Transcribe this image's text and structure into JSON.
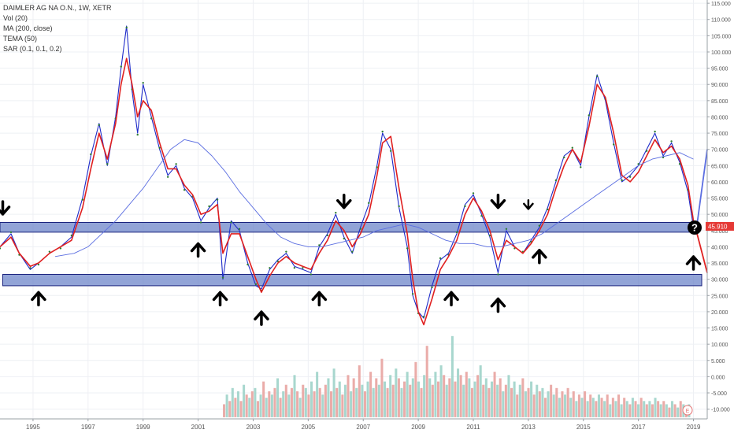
{
  "chart_data": {
    "type": "line",
    "title": "DAIMLER AG NA O.N., 1W, XETR",
    "indicators": [
      "Vol (20)",
      "MA (200, close)",
      "TEMA (50)",
      "SAR (0.1, 0.1, 0.2)"
    ],
    "price_label": "45.910",
    "question_mark": "?",
    "ylim": [
      -13,
      116
    ],
    "y_ticks": [
      -10,
      -5,
      0,
      5,
      10,
      15,
      20,
      25,
      30,
      35,
      40,
      45,
      50,
      55,
      60,
      65,
      70,
      75,
      80,
      85,
      90,
      95,
      100,
      105,
      110,
      115
    ],
    "y_tick_labels": [
      "-10.000",
      "-5.000",
      "0.000",
      "5.000",
      "10.000",
      "15.000",
      "20.000",
      "25.000",
      "30.000",
      "35.000",
      "40.000",
      "45.000",
      "50.000",
      "55.000",
      "60.000",
      "65.000",
      "70.000",
      "75.000",
      "80.000",
      "85.000",
      "90.000",
      "95.000",
      "100.000",
      "105.000",
      "110.000",
      "115.000"
    ],
    "xlim": [
      1993.8,
      2019.5
    ],
    "x_ticks": [
      1995,
      1997,
      1999,
      2001,
      2003,
      2005,
      2007,
      2009,
      2011,
      2013,
      2015,
      2017,
      2019
    ],
    "x_tick_labels": [
      "1995",
      "1997",
      "1999",
      "2001",
      "2003",
      "2005",
      "2007",
      "2009",
      "2011",
      "2013",
      "2015",
      "2017",
      "2019"
    ],
    "grid": true,
    "series": [
      {
        "type": "price",
        "color": "#1e2bc9",
        "x": [
          1993.8,
          1994.2,
          1994.5,
          1994.9,
          1995.2,
          1995.6,
          1996.0,
          1996.4,
          1996.8,
          1997.1,
          1997.4,
          1997.7,
          1998.0,
          1998.2,
          1998.4,
          1998.6,
          1998.8,
          1999.0,
          1999.3,
          1999.6,
          1999.9,
          2000.2,
          2000.5,
          2000.8,
          2001.1,
          2001.4,
          2001.7,
          2001.9,
          2002.2,
          2002.5,
          2002.8,
          2003.1,
          2003.3,
          2003.6,
          2003.9,
          2004.2,
          2004.5,
          2004.8,
          2005.1,
          2005.4,
          2005.7,
          2006.0,
          2006.3,
          2006.6,
          2006.9,
          2007.2,
          2007.5,
          2007.7,
          2008.0,
          2008.3,
          2008.6,
          2008.8,
          2009.0,
          2009.2,
          2009.5,
          2009.8,
          2010.1,
          2010.4,
          2010.7,
          2011.0,
          2011.3,
          2011.6,
          2011.9,
          2012.2,
          2012.5,
          2012.8,
          2013.1,
          2013.4,
          2013.7,
          2014.0,
          2014.3,
          2014.6,
          2014.9,
          2015.2,
          2015.5,
          2015.8,
          2016.1,
          2016.4,
          2016.7,
          2017.0,
          2017.3,
          2017.6,
          2017.9,
          2018.2,
          2018.5,
          2018.8,
          2019.0
        ],
        "y": [
          40,
          44,
          38,
          33,
          35,
          38,
          40,
          43,
          55,
          68,
          78,
          65,
          80,
          95,
          108,
          88,
          75,
          90,
          80,
          70,
          62,
          65,
          58,
          55,
          48,
          52,
          55,
          30,
          48,
          45,
          35,
          28,
          27,
          33,
          36,
          38,
          34,
          33,
          32,
          40,
          44,
          50,
          43,
          38,
          46,
          53,
          65,
          75,
          70,
          52,
          40,
          25,
          20,
          18,
          28,
          36,
          38,
          44,
          53,
          56,
          50,
          43,
          32,
          45,
          40,
          38,
          42,
          46,
          52,
          60,
          68,
          70,
          65,
          80,
          93,
          85,
          72,
          60,
          62,
          65,
          70,
          75,
          68,
          72,
          66,
          57,
          46
        ]
      },
      {
        "type": "TEMA",
        "color": "#e02020",
        "x": [
          1993.8,
          1994.2,
          1994.5,
          1994.9,
          1995.2,
          1995.6,
          1996.0,
          1996.4,
          1996.8,
          1997.1,
          1997.4,
          1997.7,
          1998.0,
          1998.2,
          1998.4,
          1998.6,
          1998.8,
          1999.0,
          1999.3,
          1999.6,
          1999.9,
          2000.2,
          2000.5,
          2000.8,
          2001.1,
          2001.4,
          2001.7,
          2001.9,
          2002.2,
          2002.5,
          2002.8,
          2003.1,
          2003.3,
          2003.6,
          2003.9,
          2004.2,
          2004.5,
          2004.8,
          2005.1,
          2005.4,
          2005.7,
          2006.0,
          2006.3,
          2006.6,
          2006.9,
          2007.2,
          2007.5,
          2007.7,
          2008.0,
          2008.3,
          2008.6,
          2008.8,
          2009.0,
          2009.2,
          2009.5,
          2009.8,
          2010.1,
          2010.4,
          2010.7,
          2011.0,
          2011.3,
          2011.6,
          2011.9,
          2012.2,
          2012.5,
          2012.8,
          2013.1,
          2013.4,
          2013.7,
          2014.0,
          2014.3,
          2014.6,
          2014.9,
          2015.2,
          2015.5,
          2015.8,
          2016.1,
          2016.4,
          2016.7,
          2017.0,
          2017.3,
          2017.6,
          2017.9,
          2018.2,
          2018.5,
          2018.8,
          2019.0
        ],
        "y": [
          40,
          43,
          38,
          34,
          35,
          38,
          40,
          42,
          52,
          64,
          75,
          67,
          78,
          90,
          98,
          90,
          80,
          85,
          82,
          72,
          64,
          64,
          59,
          56,
          50,
          51,
          53,
          38,
          44,
          44,
          37,
          30,
          26,
          31,
          35,
          37,
          35,
          34,
          33,
          38,
          42,
          48,
          45,
          40,
          44,
          50,
          62,
          72,
          74,
          58,
          44,
          30,
          20,
          16,
          24,
          33,
          37,
          42,
          50,
          55,
          51,
          45,
          36,
          42,
          40,
          38,
          41,
          45,
          50,
          58,
          65,
          70,
          66,
          77,
          90,
          86,
          75,
          62,
          60,
          63,
          68,
          73,
          69,
          71,
          67,
          59,
          48
        ]
      },
      {
        "type": "MA200",
        "color": "#5b6ee1",
        "x": [
          1995.8,
          1996.5,
          1997.0,
          1997.5,
          1998.0,
          1998.5,
          1999.0,
          1999.5,
          2000.0,
          2000.5,
          2001.0,
          2001.5,
          2002.0,
          2002.5,
          2003.0,
          2003.5,
          2004.0,
          2004.5,
          2005.0,
          2005.5,
          2006.0,
          2006.5,
          2007.0,
          2007.5,
          2008.0,
          2008.5,
          2009.0,
          2009.5,
          2010.0,
          2010.5,
          2011.0,
          2011.5,
          2012.0,
          2012.5,
          2013.0,
          2013.5,
          2014.0,
          2014.5,
          2015.0,
          2015.5,
          2016.0,
          2016.5,
          2017.0,
          2017.5,
          2018.0,
          2018.5,
          2019.0
        ],
        "y": [
          37,
          38,
          40,
          44,
          48,
          53,
          58,
          64,
          70,
          73,
          72,
          68,
          63,
          57,
          52,
          47,
          43,
          41,
          40,
          40,
          41,
          42,
          43,
          45,
          46,
          47,
          46,
          44,
          42,
          41,
          41,
          40,
          40,
          41,
          42,
          44,
          47,
          50,
          53,
          56,
          59,
          62,
          65,
          67,
          68,
          69,
          67
        ]
      }
    ],
    "volume": {
      "start_x": 2001.9,
      "end_x": 2018.9,
      "base": -12.5,
      "colors": [
        "#e8a3a0",
        "#9fd3c9"
      ],
      "heights": [
        4,
        7,
        5,
        9,
        6,
        8,
        5,
        10,
        7,
        6,
        8,
        9,
        5,
        7,
        11,
        6,
        8,
        7,
        9,
        12,
        6,
        8,
        10,
        7,
        9,
        13,
        8,
        6,
        10,
        9,
        7,
        11,
        8,
        14,
        9,
        7,
        10,
        12,
        8,
        15,
        9,
        11,
        7,
        10,
        13,
        8,
        12,
        9,
        16,
        10,
        8,
        11,
        14,
        9,
        12,
        10,
        18,
        11,
        9,
        13,
        10,
        15,
        12,
        9,
        11,
        14,
        10,
        12,
        17,
        11,
        9,
        13,
        22,
        12,
        10,
        14,
        11,
        16,
        13,
        10,
        12,
        25,
        11,
        15,
        13,
        10,
        14,
        12,
        9,
        11,
        13,
        16,
        10,
        12,
        9,
        11,
        14,
        10,
        12,
        8,
        10,
        13,
        9,
        11,
        7,
        10,
        12,
        8,
        9,
        11,
        7,
        10,
        8,
        9,
        6,
        8,
        10,
        7,
        9,
        6,
        8,
        7,
        9,
        6,
        8,
        5,
        7,
        6,
        8,
        5,
        7,
        6,
        5,
        7,
        6,
        5,
        7,
        4,
        6,
        5,
        7,
        4,
        6,
        5,
        4,
        6,
        5,
        4,
        6,
        5,
        4,
        5,
        4,
        6,
        5,
        4,
        5,
        4,
        3,
        5,
        4,
        3,
        5,
        4,
        3,
        4
      ]
    },
    "zones": [
      {
        "x0": 1993.8,
        "x1": 2019.0,
        "y0": 44.5,
        "y1": 47.5,
        "color": "#6d86c9"
      },
      {
        "x0": 1993.9,
        "x1": 2019.3,
        "y0": 28,
        "y1": 31.5,
        "color": "#6d86c9"
      }
    ],
    "arrows": [
      {
        "x": 1993.9,
        "y": 52,
        "dir": "down"
      },
      {
        "x": 1995.2,
        "y": 24,
        "dir": "up"
      },
      {
        "x": 2001.0,
        "y": 39,
        "dir": "up"
      },
      {
        "x": 2001.8,
        "y": 24,
        "dir": "up"
      },
      {
        "x": 2003.3,
        "y": 18,
        "dir": "up"
      },
      {
        "x": 2005.4,
        "y": 24,
        "dir": "up"
      },
      {
        "x": 2006.3,
        "y": 54,
        "dir": "down"
      },
      {
        "x": 2010.2,
        "y": 24,
        "dir": "up"
      },
      {
        "x": 2011.9,
        "y": 54,
        "dir": "down"
      },
      {
        "x": 2011.9,
        "y": 22,
        "dir": "up"
      },
      {
        "x": 2013.0,
        "y": 53,
        "dir": "down",
        "small": true
      },
      {
        "x": 2013.4,
        "y": 37,
        "dir": "up"
      },
      {
        "x": 2019.0,
        "y": 35,
        "dir": "up"
      }
    ],
    "projection_lines": [
      {
        "x0": 2019.1,
        "y0": 45,
        "x1": 2019.5,
        "y1": 70,
        "color": "#5b6ee1"
      },
      {
        "x0": 2019.1,
        "y0": 45,
        "x1": 2019.5,
        "y1": 32,
        "color": "#e02020"
      }
    ]
  }
}
